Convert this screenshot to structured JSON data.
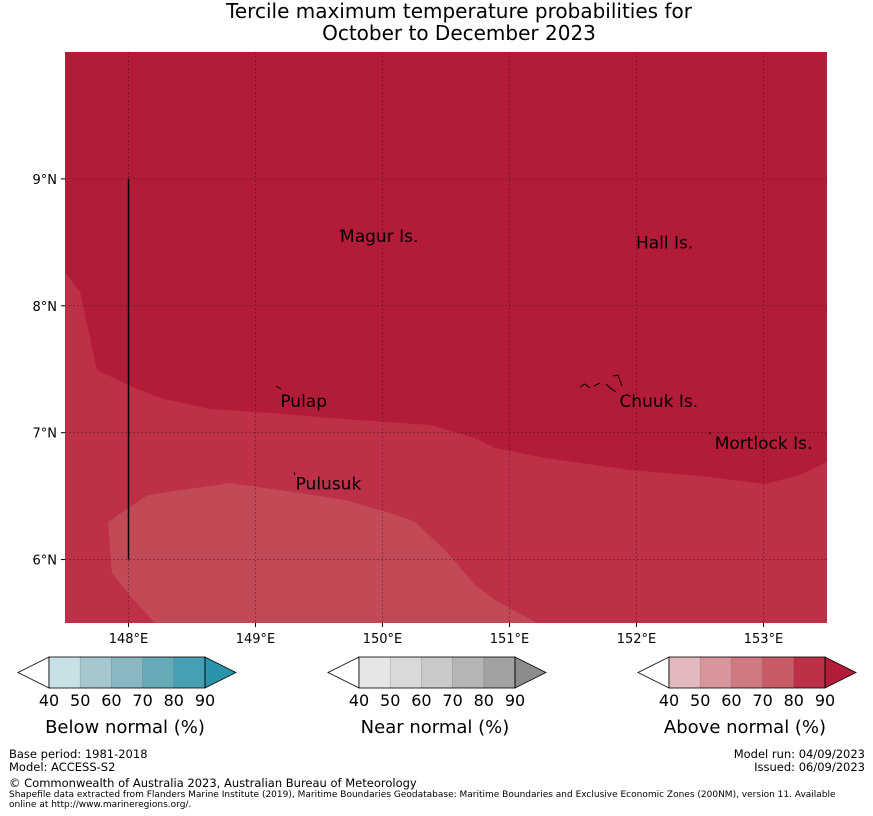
{
  "title": {
    "line1": "Tercile maximum temperature probabilities for",
    "line2": "October to December 2023"
  },
  "map": {
    "lon_range": [
      147.5,
      153.5
    ],
    "lat_range": [
      5.5,
      10.0
    ],
    "x_ticks": [
      {
        "value": 148,
        "label": "148°E"
      },
      {
        "value": 149,
        "label": "149°E"
      },
      {
        "value": 150,
        "label": "150°E"
      },
      {
        "value": 151,
        "label": "151°E"
      },
      {
        "value": 152,
        "label": "152°E"
      },
      {
        "value": 153,
        "label": "153°E"
      }
    ],
    "y_ticks": [
      {
        "value": 9,
        "label": "9°N"
      },
      {
        "value": 8,
        "label": "8°N"
      },
      {
        "value": 7,
        "label": "7°N"
      },
      {
        "value": 6,
        "label": "6°N"
      }
    ],
    "gridlines": true,
    "regions": [
      {
        "category": "above-normal",
        "probability_band": "80-90",
        "color": "#b31c38"
      },
      {
        "category": "above-normal",
        "probability_band": "70-80",
        "color": "#bd3048"
      },
      {
        "category": "above-normal",
        "probability_band": "60-70",
        "color": "#c24a56"
      }
    ],
    "places": [
      {
        "name": "Magur Is.",
        "lon": 149.65,
        "lat": 8.55
      },
      {
        "name": "Hall Is.",
        "lon": 151.98,
        "lat": 8.5
      },
      {
        "name": "Pulap",
        "lon": 149.18,
        "lat": 7.25
      },
      {
        "name": "Chuuk Is.",
        "lon": 151.85,
        "lat": 7.25
      },
      {
        "name": "Mortlock Is.",
        "lon": 152.6,
        "lat": 6.92
      },
      {
        "name": "Pulusuk",
        "lon": 149.3,
        "lat": 6.6
      }
    ],
    "eez_line": {
      "lon": 148.0,
      "lat_from": 6.0,
      "lat_to": 9.0
    }
  },
  "colorbars": [
    {
      "title": "Below normal (%)",
      "tick_labels": [
        "40",
        "50",
        "60",
        "70",
        "80",
        "90"
      ],
      "colors": [
        "#ffffff",
        "#c8e1e7",
        "#a6c7cd",
        "#89b8c2",
        "#66aab9",
        "#44a0b2",
        "#2994ab"
      ]
    },
    {
      "title": "Near normal (%)",
      "tick_labels": [
        "40",
        "50",
        "60",
        "70",
        "80",
        "90"
      ],
      "colors": [
        "#ffffff",
        "#e6e6e6",
        "#d9d9d9",
        "#c9c9c9",
        "#b5b5b5",
        "#a1a1a1",
        "#8c8c8c"
      ]
    },
    {
      "title": "Above normal (%)",
      "tick_labels": [
        "40",
        "50",
        "60",
        "70",
        "80",
        "90"
      ],
      "colors": [
        "#ffffff",
        "#e3b8be",
        "#d9959c",
        "#d07980",
        "#c95b66",
        "#bd3048",
        "#b31c38"
      ]
    }
  ],
  "footer": {
    "base_period": "Base period: 1981-2018",
    "model": "Model: ACCESS-S2",
    "model_run": "Model run: 04/09/2023",
    "issued": "Issued: 06/09/2023",
    "copyright": "© Commonwealth of Australia 2023, Australian Bureau of Meteorology",
    "shapefile_note": "Shapefile data extracted from Flanders Marine Institute (2019), Maritime Boundaries Geodatabase: Maritime Boundaries and Exclusive Economic Zones (200NM), version 11. Available online at http://www.marineregions.org/."
  }
}
